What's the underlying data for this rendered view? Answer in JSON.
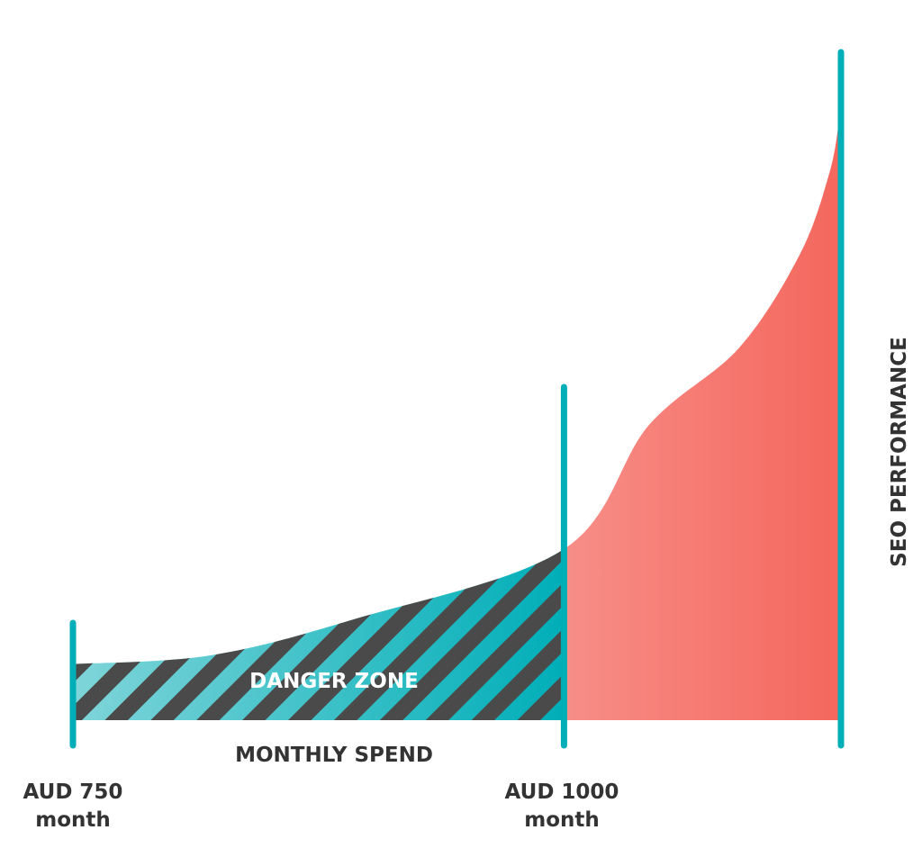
{
  "chart_data": {
    "type": "area",
    "title": "",
    "xlabel": "MONTHLY SPEND",
    "ylabel": "SEO PERFORMANCE",
    "xlim": [
      750,
      1141
    ],
    "ylim": [
      0,
      100
    ],
    "grid": false,
    "x": [
      751,
      820,
      893,
      1000,
      1043,
      1089,
      1120,
      1135,
      1140
    ],
    "y": [
      8.4,
      9.7,
      15.1,
      25.6,
      44.1,
      55.7,
      69.7,
      81.8,
      89.6
    ],
    "markers": [
      {
        "x": 750,
        "label_line1": "AUD 750",
        "label_line2": "month"
      },
      {
        "x": 1000,
        "label_line1": "AUD 1000",
        "label_line2": "month"
      },
      {
        "x": 1141
      }
    ],
    "regions": [
      {
        "name": "DANGER ZONE",
        "from": 750,
        "to": 1000,
        "style": "hatched"
      },
      {
        "from": 1000,
        "to": 1141,
        "style": "solid"
      }
    ],
    "annotation": "DANGER ZONE"
  },
  "colors": {
    "teal": "#00aeb8",
    "teal_light": "#7fd5d9",
    "stripe": "#4a4a4a",
    "red_light": "#f78e88",
    "red": "#f4675d",
    "text": "#333333"
  }
}
